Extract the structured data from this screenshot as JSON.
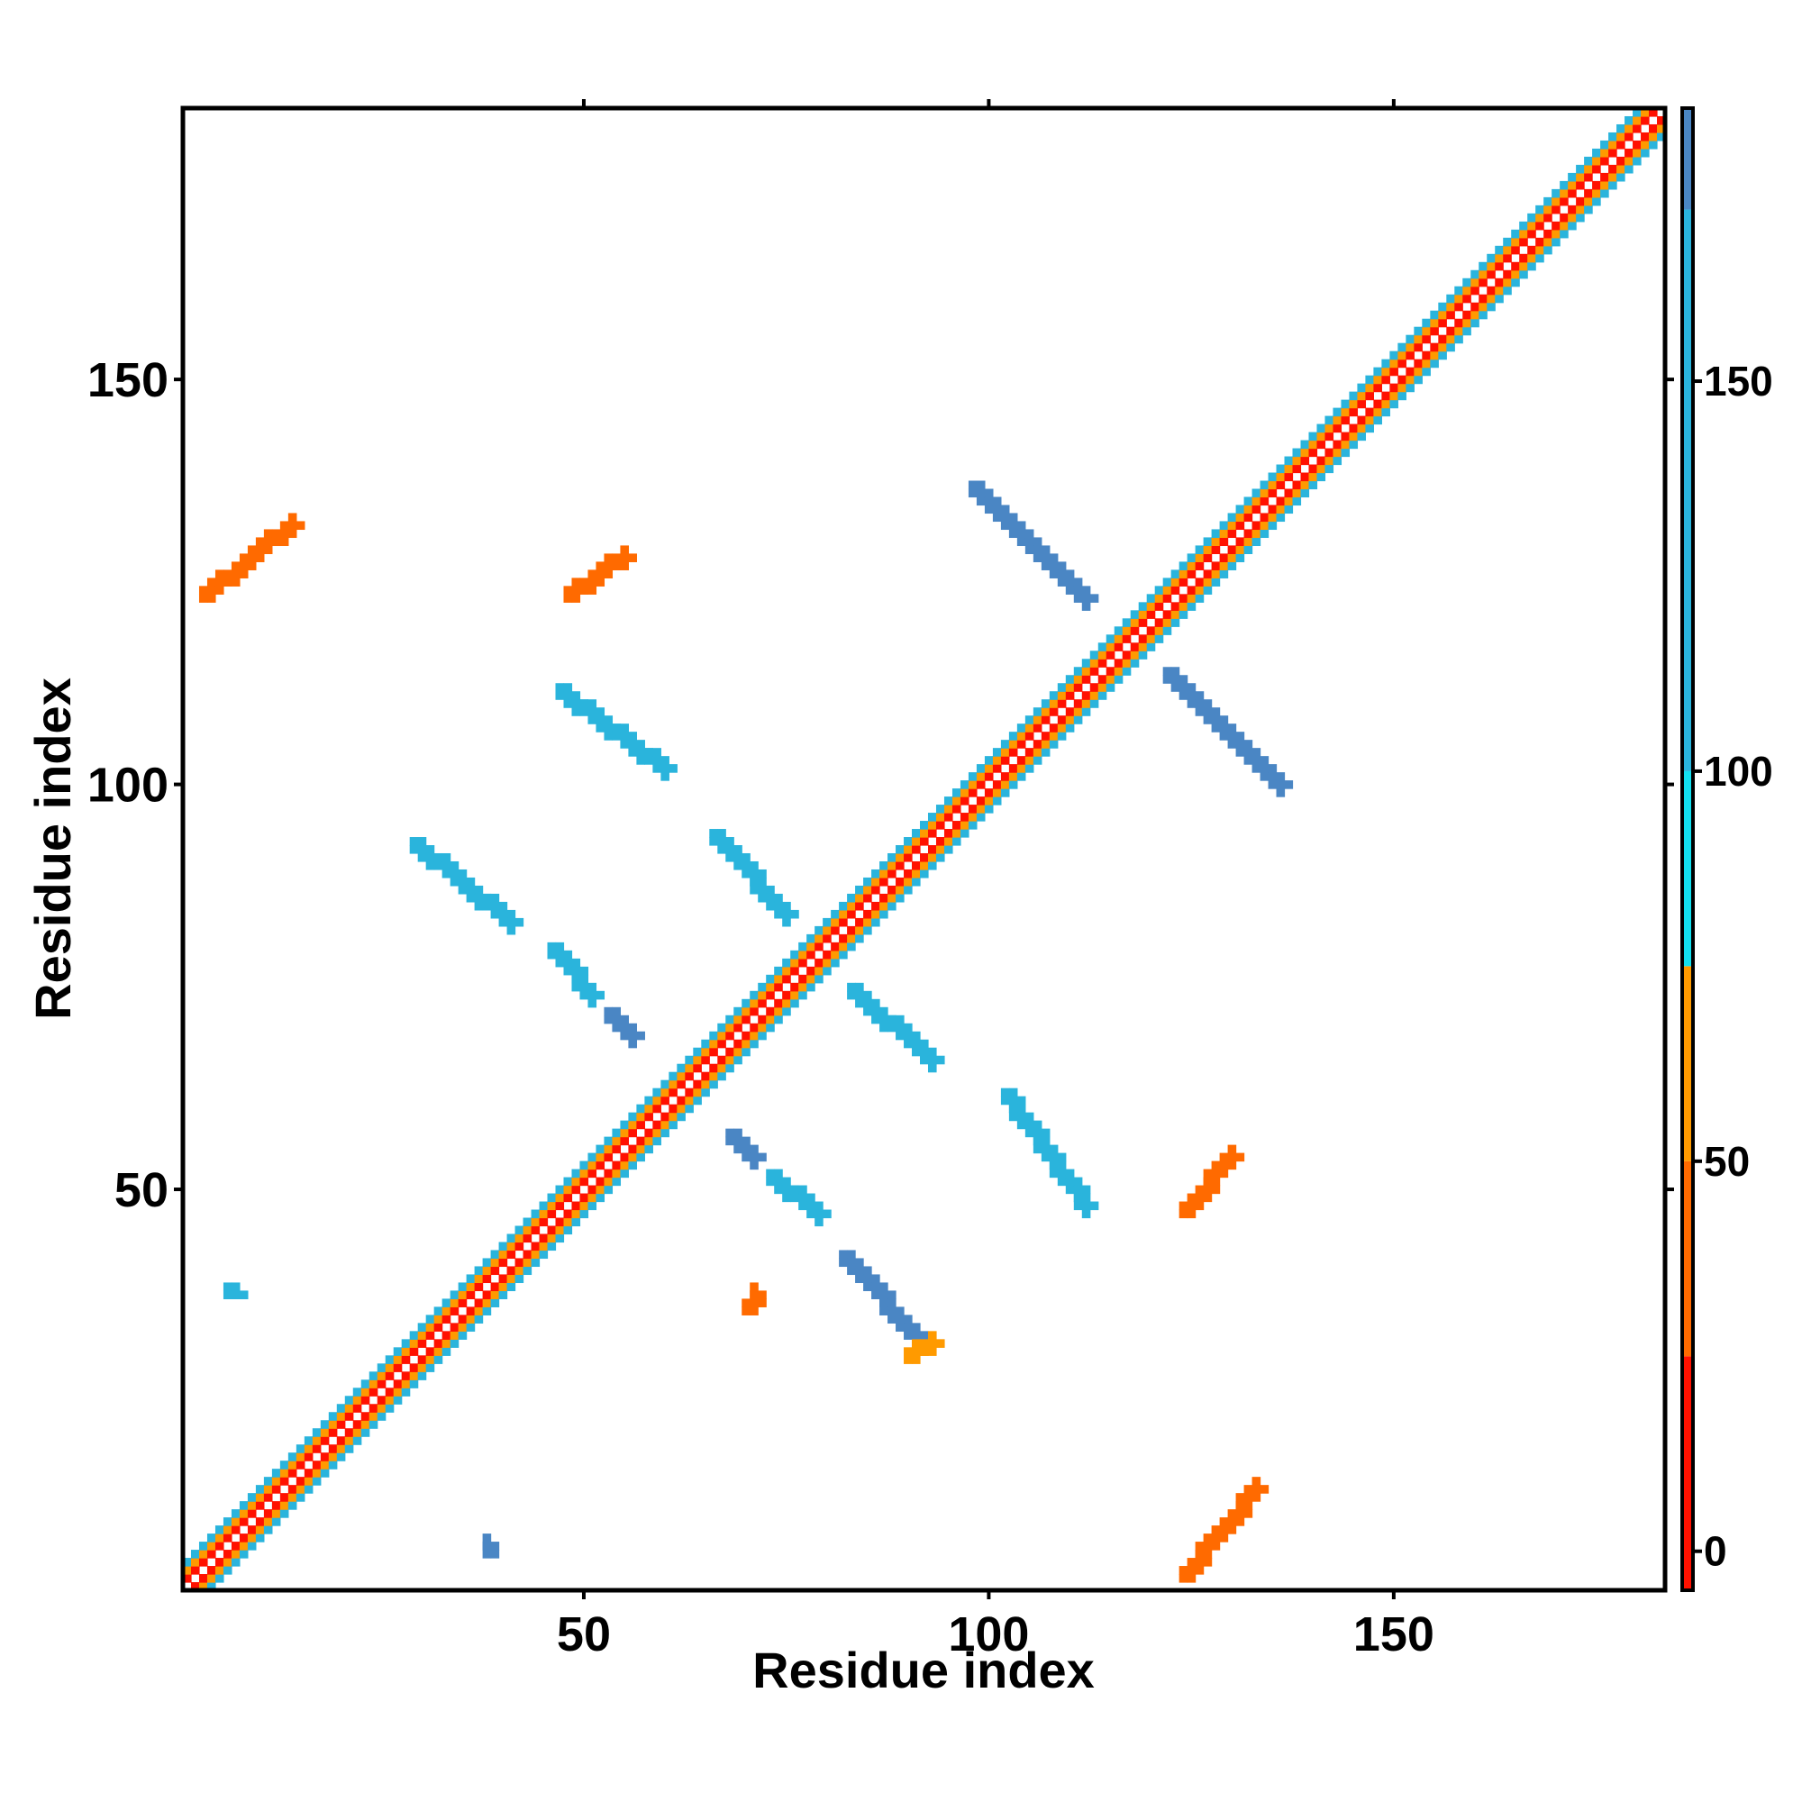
{
  "chart_data": {
    "type": "heatmap",
    "title": "",
    "xlabel": "Residue index",
    "ylabel": "Residue index",
    "xlim": [
      1,
      183
    ],
    "ylim": [
      1,
      183
    ],
    "x_ticks": [
      50,
      100,
      150
    ],
    "y_ticks": [
      50,
      100,
      150
    ],
    "grid": false,
    "colorbar": {
      "placement": "right",
      "range": [
        -5,
        185
      ],
      "ticks": [
        0,
        50,
        100,
        150
      ],
      "bands": [
        {
          "from": -5,
          "to": 25,
          "color": "#ff1100"
        },
        {
          "from": 25,
          "to": 50,
          "color": "#ff6a00"
        },
        {
          "from": 50,
          "to": 75,
          "color": "#ff9a00"
        },
        {
          "from": 75,
          "to": 100,
          "color": "#13e0f0"
        },
        {
          "from": 100,
          "to": 172,
          "color": "#2ab4dc"
        },
        {
          "from": 172,
          "to": 185,
          "color": "#4a86c4"
        }
      ]
    },
    "colors": {
      "red": "#ff1100",
      "dark_orange": "#ff6a00",
      "orange": "#ff9a00",
      "cyan": "#13e0f0",
      "sky": "#2ab4dc",
      "steel": "#4a86c4"
    },
    "features": [
      {
        "kind": "diagonal",
        "from": [
          1,
          1
        ],
        "to": [
          183,
          183
        ],
        "offsets": [
          -3,
          -2,
          -1,
          1,
          2,
          3
        ],
        "colors": [
          "sky",
          "orange",
          "red",
          "red",
          "orange",
          "sky"
        ]
      },
      {
        "kind": "band",
        "color": "steel",
        "from": [
          98,
          136
        ],
        "to": [
          112,
          122
        ]
      },
      {
        "kind": "band",
        "color": "steel",
        "from": [
          122,
          113
        ],
        "to": [
          136,
          99
        ]
      },
      {
        "kind": "band",
        "color": "sky",
        "from": [
          47,
          111
        ],
        "to": [
          60,
          101
        ]
      },
      {
        "kind": "band",
        "color": "sky",
        "from": [
          29,
          92
        ],
        "to": [
          41,
          82
        ]
      },
      {
        "kind": "band",
        "color": "sky",
        "from": [
          66,
          93
        ],
        "to": [
          75,
          83
        ]
      },
      {
        "kind": "band",
        "color": "sky",
        "from": [
          83,
          74
        ],
        "to": [
          93,
          65
        ]
      },
      {
        "kind": "band",
        "color": "sky",
        "from": [
          102,
          61
        ],
        "to": [
          112,
          47
        ]
      },
      {
        "kind": "band",
        "color": "steel",
        "from": [
          82,
          41
        ],
        "to": [
          91,
          31
        ]
      },
      {
        "kind": "band",
        "color": "sky",
        "from": [
          46,
          79
        ],
        "to": [
          51,
          73
        ]
      },
      {
        "kind": "band",
        "color": "sky",
        "from": [
          73,
          51
        ],
        "to": [
          79,
          46
        ]
      },
      {
        "kind": "band",
        "color": "steel",
        "from": [
          68,
          56
        ],
        "to": [
          71,
          53
        ]
      },
      {
        "kind": "band",
        "color": "steel",
        "from": [
          53,
          71
        ],
        "to": [
          56,
          68
        ]
      },
      {
        "kind": "band",
        "color": "dark_orange",
        "from": [
          3,
          124
        ],
        "to": [
          14,
          133
        ]
      },
      {
        "kind": "band",
        "color": "dark_orange",
        "from": [
          124,
          3
        ],
        "to": [
          133,
          14
        ]
      },
      {
        "kind": "band",
        "color": "dark_orange",
        "from": [
          48,
          124
        ],
        "to": [
          55,
          129
        ]
      },
      {
        "kind": "band",
        "color": "dark_orange",
        "from": [
          124,
          48
        ],
        "to": [
          130,
          55
        ]
      },
      {
        "kind": "band",
        "color": "orange",
        "from": [
          90,
          30
        ],
        "to": [
          93,
          32
        ]
      },
      {
        "kind": "band",
        "color": "dark_orange",
        "from": [
          70,
          36
        ],
        "to": [
          71,
          38
        ]
      },
      {
        "kind": "band",
        "color": "sky",
        "from": [
          6,
          38
        ],
        "to": [
          7,
          38
        ]
      },
      {
        "kind": "band",
        "color": "steel",
        "from": [
          38,
          6
        ],
        "to": [
          38,
          7
        ]
      }
    ]
  }
}
